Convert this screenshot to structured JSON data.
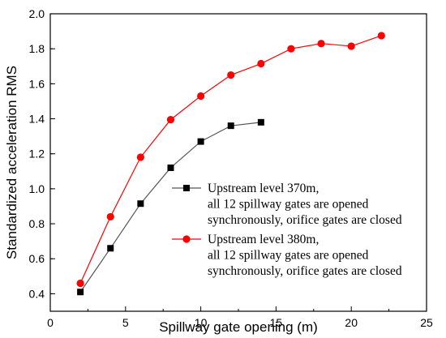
{
  "chart_data": {
    "type": "line",
    "title": "",
    "xlabel": "Spillway gate opening (m)",
    "ylabel": "Standardized acceleration RMS",
    "xlim": [
      0,
      25
    ],
    "ylim": [
      0.3,
      2.0
    ],
    "xticks": [
      0,
      5,
      10,
      15,
      20,
      25
    ],
    "xtick_labels": [
      "0",
      "5",
      "10",
      "15",
      "20",
      "25"
    ],
    "yticks": [
      0.4,
      0.6,
      0.8,
      1.0,
      1.2,
      1.4,
      1.6,
      1.8,
      2.0
    ],
    "ytick_labels": [
      "0.4",
      "0.6",
      "0.8",
      "1.0",
      "1.2",
      "1.4",
      "1.6",
      "1.8",
      "2.0"
    ],
    "grid": false,
    "legend_position": "center-right",
    "series": [
      {
        "name_lines": [
          "Upstream level 370m,",
          "all 12 spillway gates are opened",
          "synchronously, orifice gates are closed"
        ],
        "color": "#000000",
        "line_color": "#555555",
        "marker": "square",
        "x": [
          2,
          4,
          6,
          8,
          10,
          12,
          14
        ],
        "y": [
          0.41,
          0.66,
          0.915,
          1.12,
          1.27,
          1.36,
          1.38
        ]
      },
      {
        "name_lines": [
          "Upstream level 380m,",
          "all 12 spillway gates are opened",
          "synchronously, orifice gates are closed"
        ],
        "color": "#ff0000",
        "line_color": "#ff0000",
        "marker": "circle",
        "x": [
          2,
          4,
          6,
          8,
          10,
          12,
          14,
          16,
          18,
          20,
          22
        ],
        "y": [
          0.46,
          0.84,
          1.18,
          1.395,
          1.53,
          1.65,
          1.715,
          1.8,
          1.83,
          1.815,
          1.875
        ]
      }
    ]
  }
}
